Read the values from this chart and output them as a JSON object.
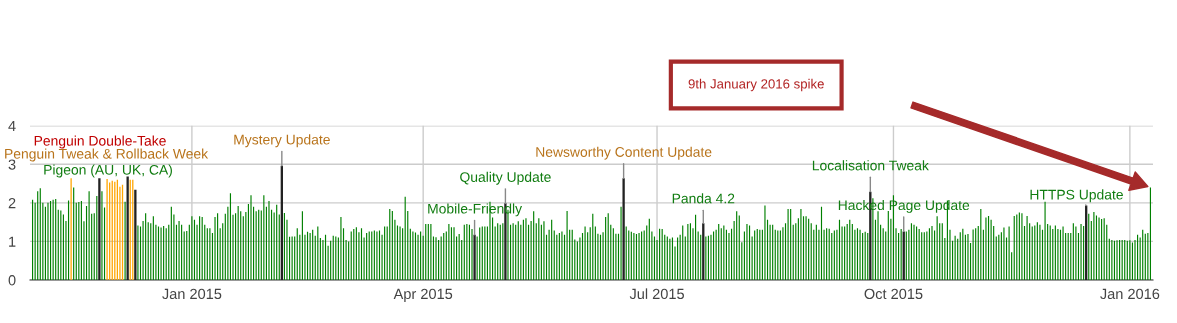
{
  "chart_data": {
    "type": "bar",
    "x": [
      "2014-10-31",
      "2014-11-01",
      "2014-11-02",
      "2014-11-03",
      "2014-11-04",
      "2014-11-05",
      "2014-11-06",
      "2014-11-07",
      "2014-11-08",
      "2014-11-09",
      "2014-11-10",
      "2014-11-11",
      "2014-11-12",
      "2014-11-13",
      "2014-11-14",
      "2014-11-15",
      "2014-11-16",
      "2014-11-17",
      "2014-11-18",
      "2014-11-19",
      "2014-11-20",
      "2014-11-21",
      "2014-11-22",
      "2014-11-23",
      "2014-11-24",
      "2014-11-25",
      "2014-11-26",
      "2014-11-27",
      "2014-11-28",
      "2014-11-29",
      "2014-11-30",
      "2014-12-01",
      "2014-12-02",
      "2014-12-03",
      "2014-12-04",
      "2014-12-05",
      "2014-12-06",
      "2014-12-07",
      "2014-12-08",
      "2014-12-09",
      "2014-12-10",
      "2014-12-11",
      "2014-12-12",
      "2014-12-13",
      "2014-12-14",
      "2014-12-15",
      "2014-12-16",
      "2014-12-17",
      "2014-12-18",
      "2014-12-19",
      "2014-12-20",
      "2014-12-21",
      "2014-12-22",
      "2014-12-23",
      "2014-12-24",
      "2014-12-25",
      "2014-12-26",
      "2014-12-27",
      "2014-12-28",
      "2014-12-29",
      "2014-12-30",
      "2014-12-31",
      "2015-01-01",
      "2015-01-02",
      "2015-01-03",
      "2015-01-04",
      "2015-01-05",
      "2015-01-06",
      "2015-01-07",
      "2015-01-08",
      "2015-01-09",
      "2015-01-10",
      "2015-01-11",
      "2015-01-12",
      "2015-01-13",
      "2015-01-14",
      "2015-01-15",
      "2015-01-16",
      "2015-01-17",
      "2015-01-18",
      "2015-01-19",
      "2015-01-20",
      "2015-01-21",
      "2015-01-22",
      "2015-01-23",
      "2015-01-24",
      "2015-01-25",
      "2015-01-26",
      "2015-01-27",
      "2015-01-28",
      "2015-01-29",
      "2015-01-30",
      "2015-01-31",
      "2015-02-01",
      "2015-02-02",
      "2015-02-03",
      "2015-02-04",
      "2015-02-05",
      "2015-02-06",
      "2015-02-07",
      "2015-02-08",
      "2015-02-09",
      "2015-02-10",
      "2015-02-11",
      "2015-02-12",
      "2015-02-13",
      "2015-02-14",
      "2015-02-15",
      "2015-02-16",
      "2015-02-17",
      "2015-02-18",
      "2015-02-19",
      "2015-02-20",
      "2015-02-21",
      "2015-02-22",
      "2015-02-23",
      "2015-02-24",
      "2015-02-25",
      "2015-02-26",
      "2015-02-27",
      "2015-02-28",
      "2015-03-01",
      "2015-03-02",
      "2015-03-03",
      "2015-03-04",
      "2015-03-05",
      "2015-03-06",
      "2015-03-07",
      "2015-03-08",
      "2015-03-09",
      "2015-03-10",
      "2015-03-11",
      "2015-03-12",
      "2015-03-13",
      "2015-03-14",
      "2015-03-15",
      "2015-03-16",
      "2015-03-17",
      "2015-03-18",
      "2015-03-19",
      "2015-03-20",
      "2015-03-21",
      "2015-03-22",
      "2015-03-23",
      "2015-03-24",
      "2015-03-25",
      "2015-03-26",
      "2015-03-27",
      "2015-03-28",
      "2015-03-29",
      "2015-03-30",
      "2015-03-31",
      "2015-04-01",
      "2015-04-02",
      "2015-04-03",
      "2015-04-04",
      "2015-04-05",
      "2015-04-06",
      "2015-04-07",
      "2015-04-08",
      "2015-04-09",
      "2015-04-10",
      "2015-04-11",
      "2015-04-12",
      "2015-04-13",
      "2015-04-14",
      "2015-04-15",
      "2015-04-16",
      "2015-04-17",
      "2015-04-18",
      "2015-04-19",
      "2015-04-20",
      "2015-04-21",
      "2015-04-22",
      "2015-04-23",
      "2015-04-24",
      "2015-04-25",
      "2015-04-26",
      "2015-04-27",
      "2015-04-28",
      "2015-04-29",
      "2015-04-30",
      "2015-05-01",
      "2015-05-02",
      "2015-05-03",
      "2015-05-04",
      "2015-05-05",
      "2015-05-06",
      "2015-05-07",
      "2015-05-08",
      "2015-05-09",
      "2015-05-10",
      "2015-05-11",
      "2015-05-12",
      "2015-05-13",
      "2015-05-14",
      "2015-05-15",
      "2015-05-16",
      "2015-05-17",
      "2015-05-18",
      "2015-05-19",
      "2015-05-20",
      "2015-05-21",
      "2015-05-22",
      "2015-05-23",
      "2015-05-24",
      "2015-05-25",
      "2015-05-26",
      "2015-05-27",
      "2015-05-28",
      "2015-05-29",
      "2015-05-30",
      "2015-05-31",
      "2015-06-01",
      "2015-06-02",
      "2015-06-03",
      "2015-06-04",
      "2015-06-05",
      "2015-06-06",
      "2015-06-07",
      "2015-06-08",
      "2015-06-09",
      "2015-06-10",
      "2015-06-11",
      "2015-06-12",
      "2015-06-13",
      "2015-06-14",
      "2015-06-15",
      "2015-06-16",
      "2015-06-17",
      "2015-06-18",
      "2015-06-19",
      "2015-06-20",
      "2015-06-21",
      "2015-06-22",
      "2015-06-23",
      "2015-06-24",
      "2015-06-25",
      "2015-06-26",
      "2015-06-27",
      "2015-06-28",
      "2015-06-29",
      "2015-06-30",
      "2015-07-01",
      "2015-07-02",
      "2015-07-03",
      "2015-07-04",
      "2015-07-05",
      "2015-07-06",
      "2015-07-07",
      "2015-07-08",
      "2015-07-09",
      "2015-07-10",
      "2015-07-11",
      "2015-07-12",
      "2015-07-13",
      "2015-07-14",
      "2015-07-15",
      "2015-07-16",
      "2015-07-17",
      "2015-07-18",
      "2015-07-19",
      "2015-07-20",
      "2015-07-21",
      "2015-07-22",
      "2015-07-23",
      "2015-07-24",
      "2015-07-25",
      "2015-07-26",
      "2015-07-27",
      "2015-07-28",
      "2015-07-29",
      "2015-07-30",
      "2015-07-31",
      "2015-08-01",
      "2015-08-02",
      "2015-08-03",
      "2015-08-04",
      "2015-08-05",
      "2015-08-06",
      "2015-08-07",
      "2015-08-08",
      "2015-08-09",
      "2015-08-10",
      "2015-08-11",
      "2015-08-12",
      "2015-08-13",
      "2015-08-14",
      "2015-08-15",
      "2015-08-16",
      "2015-08-17",
      "2015-08-18",
      "2015-08-19",
      "2015-08-20",
      "2015-08-21",
      "2015-08-22",
      "2015-08-23",
      "2015-08-24",
      "2015-08-25",
      "2015-08-26",
      "2015-08-27",
      "2015-08-28",
      "2015-08-29",
      "2015-08-30",
      "2015-08-31",
      "2015-09-01",
      "2015-09-02",
      "2015-09-03",
      "2015-09-04",
      "2015-09-05",
      "2015-09-06",
      "2015-09-07",
      "2015-09-08",
      "2015-09-09",
      "2015-09-10",
      "2015-09-11",
      "2015-09-12",
      "2015-09-13",
      "2015-09-14",
      "2015-09-15",
      "2015-09-16",
      "2015-09-17",
      "2015-09-18",
      "2015-09-19",
      "2015-09-20",
      "2015-09-21",
      "2015-09-22",
      "2015-09-23",
      "2015-09-24",
      "2015-09-25",
      "2015-09-26",
      "2015-09-27",
      "2015-09-28",
      "2015-09-29",
      "2015-09-30",
      "2015-10-01",
      "2015-10-02",
      "2015-10-03",
      "2015-10-04",
      "2015-10-05",
      "2015-10-06",
      "2015-10-07",
      "2015-10-08",
      "2015-10-09",
      "2015-10-10",
      "2015-10-11",
      "2015-10-12",
      "2015-10-13",
      "2015-10-14",
      "2015-10-15",
      "2015-10-16",
      "2015-10-17",
      "2015-10-18",
      "2015-10-19",
      "2015-10-20",
      "2015-10-21",
      "2015-10-22",
      "2015-10-23",
      "2015-10-24",
      "2015-10-25",
      "2015-10-26",
      "2015-10-27",
      "2015-10-28",
      "2015-10-29",
      "2015-10-30",
      "2015-10-31",
      "2015-11-01",
      "2015-11-02",
      "2015-11-03",
      "2015-11-04",
      "2015-11-05",
      "2015-11-06",
      "2015-11-07",
      "2015-11-08",
      "2015-11-09",
      "2015-11-10",
      "2015-11-11",
      "2015-11-12",
      "2015-11-13",
      "2015-11-14",
      "2015-11-15",
      "2015-11-16",
      "2015-11-17",
      "2015-11-18",
      "2015-11-19",
      "2015-11-20",
      "2015-11-21",
      "2015-11-22",
      "2015-11-23",
      "2015-11-24",
      "2015-11-25",
      "2015-11-26",
      "2015-11-27",
      "2015-11-28",
      "2015-11-29",
      "2015-11-30",
      "2015-12-01",
      "2015-12-02",
      "2015-12-03",
      "2015-12-04",
      "2015-12-05",
      "2015-12-06",
      "2015-12-07",
      "2015-12-08",
      "2015-12-09",
      "2015-12-10",
      "2015-12-11",
      "2015-12-12",
      "2015-12-13",
      "2015-12-14",
      "2015-12-15",
      "2015-12-16",
      "2015-12-17",
      "2015-12-18",
      "2015-12-19",
      "2015-12-20",
      "2015-12-21",
      "2015-12-22",
      "2015-12-23",
      "2015-12-24",
      "2015-12-25",
      "2015-12-26",
      "2015-12-27",
      "2015-12-28",
      "2015-12-29",
      "2015-12-30",
      "2015-12-31",
      "2016-01-01",
      "2016-01-02",
      "2016-01-03",
      "2016-01-04",
      "2016-01-05",
      "2016-01-06",
      "2016-01-07",
      "2016-01-08",
      "2016-01-09"
    ],
    "series": [
      {
        "color": "#008000",
        "values": [
          2.08,
          2.0,
          2.3,
          2.38,
          2.0,
          1.9,
          2.0,
          2.05,
          2.08,
          2.1,
          1.82,
          1.8,
          1.7,
          1.53,
          2.06,
          null,
          2.4,
          2.0,
          2.02,
          2.05,
          1.52,
          1.92,
          2.3,
          1.72,
          1.73,
          2.18,
          null,
          2.3,
          1.88,
          null,
          null,
          null,
          null,
          null,
          null,
          null,
          2.03,
          null,
          null,
          null,
          null,
          1.41,
          1.39,
          1.53,
          1.73,
          1.5,
          1.47,
          1.65,
          1.43,
          1.39,
          1.36,
          1.4,
          1.34,
          1.43,
          1.9,
          1.7,
          1.43,
          1.53,
          1.43,
          1.26,
          1.27,
          1.43,
          1.65,
          1.56,
          1.43,
          1.65,
          1.63,
          1.43,
          1.34,
          1.34,
          1.22,
          1.63,
          1.73,
          1.34,
          1.47,
          1.72,
          1.9,
          2.25,
          1.69,
          1.73,
          1.92,
          1.78,
          1.65,
          1.76,
          1.97,
          2.2,
          1.9,
          1.78,
          1.82,
          1.8,
          2.2,
          1.9,
          2.05,
          1.82,
          1.75,
          1.95,
          1.7,
          null,
          1.74,
          1.56,
          1.12,
          1.13,
          1.13,
          1.34,
          1.17,
          1.78,
          1.17,
          1.25,
          1.22,
          1.3,
          1.15,
          1.39,
          1.09,
          1.04,
          1.17,
          0.89,
          1.02,
          1.15,
          1.13,
          1.1,
          1.63,
          1.34,
          1.04,
          1.0,
          1.26,
          1.32,
          1.37,
          1.24,
          1.34,
          1.1,
          1.22,
          1.26,
          1.26,
          1.28,
          1.26,
          1.28,
          1.17,
          1.39,
          1.39,
          1.84,
          1.79,
          1.56,
          1.41,
          1.39,
          1.34,
          2.16,
          1.79,
          1.33,
          1.26,
          1.23,
          1.17,
          1.26,
          1.15,
          1.45,
          1.45,
          1.45,
          1.13,
          1.11,
          1.04,
          1.13,
          1.22,
          1.26,
          1.45,
          1.37,
          1.37,
          1.13,
          1.19,
          1.04,
          1.43,
          1.45,
          1.43,
          1.32,
          null,
          1.13,
          1.36,
          1.39,
          1.39,
          1.39,
          2.03,
          1.62,
          1.39,
          1.47,
          1.43,
          1.47,
          null,
          1.82,
          1.43,
          1.47,
          1.43,
          1.52,
          1.43,
          1.56,
          1.6,
          1.43,
          1.53,
          1.78,
          1.47,
          1.6,
          1.43,
          1.52,
          1.17,
          1.3,
          1.56,
          1.28,
          1.17,
          1.22,
          1.26,
          1.17,
          1.79,
          1.3,
          1.3,
          1.05,
          1.0,
          1.1,
          1.22,
          1.39,
          1.24,
          1.37,
          1.72,
          1.39,
          1.2,
          1.17,
          1.24,
          1.63,
          1.73,
          1.43,
          1.34,
          1.2,
          1.2,
          1.9,
          null,
          1.39,
          1.28,
          1.25,
          1.22,
          1.19,
          1.22,
          1.26,
          1.28,
          1.41,
          1.59,
          1.26,
          1.13,
          1.04,
          1.33,
          1.32,
          1.17,
          1.13,
          1.07,
          1.1,
          0.87,
          1.1,
          1.17,
          1.41,
          1.13,
          1.45,
          1.47,
          1.34,
          1.69,
          1.26,
          1.17,
          null,
          1.13,
          1.15,
          1.17,
          1.26,
          1.3,
          1.45,
          1.34,
          1.41,
          1.3,
          1.22,
          1.33,
          1.53,
          1.78,
          1.67,
          0.98,
          1.26,
          1.45,
          1.41,
          1.13,
          1.28,
          1.32,
          1.3,
          1.3,
          1.93,
          1.56,
          1.43,
          1.43,
          1.3,
          1.28,
          1.28,
          1.37,
          1.47,
          1.84,
          1.84,
          1.43,
          1.47,
          1.6,
          1.84,
          1.65,
          1.65,
          1.59,
          1.47,
          1.3,
          1.43,
          1.3,
          1.9,
          1.3,
          1.34,
          1.33,
          1.22,
          1.28,
          1.3,
          1.56,
          1.39,
          1.39,
          1.45,
          1.56,
          1.45,
          1.3,
          1.34,
          1.3,
          1.22,
          1.25,
          1.22,
          null,
          2.12,
          1.56,
          1.78,
          1.43,
          1.34,
          1.26,
          1.79,
          1.59,
          2.2,
          1.34,
          1.22,
          1.32,
          null,
          1.26,
          1.3,
          1.47,
          1.43,
          1.39,
          1.32,
          1.24,
          1.24,
          1.26,
          1.34,
          1.4,
          1.28,
          1.65,
          1.47,
          1.47,
          1.09,
          2.06,
          1.3,
          1.02,
          1.15,
          1.07,
          1.24,
          1.33,
          1.17,
          1.19,
          0.96,
          1.31,
          1.34,
          1.4,
          1.84,
          1.3,
          1.62,
          1.66,
          1.56,
          1.4,
          1.13,
          1.17,
          1.24,
          1.36,
          1.1,
          1.39,
          0.72,
          1.66,
          1.7,
          1.75,
          1.73,
          1.4,
          1.66,
          1.47,
          1.39,
          1.41,
          1.5,
          1.43,
          1.3,
          2.03,
          1.45,
          1.41,
          1.32,
          1.41,
          1.32,
          1.3,
          1.39,
          1.22,
          1.22,
          1.22,
          1.47,
          1.39,
          1.22,
          1.45,
          1.4,
          null,
          1.72,
          1.53,
          1.76,
          1.67,
          1.62,
          1.58,
          1.6,
          1.43,
          1.07,
          1.04,
          1.02,
          1.03,
          1.04,
          1.04,
          1.04,
          1.02,
          1.03,
          0.97,
          1.04,
          1.17,
          1.1,
          1.3,
          1.2,
          1.22,
          2.4
        ]
      },
      {
        "color": "#ffa500",
        "x": [
          "2014-11-15",
          "2014-11-29",
          "2014-11-30",
          "2014-12-01",
          "2014-12-02",
          "2014-12-03",
          "2014-12-04",
          "2014-12-05",
          "2014-12-08",
          "2014-12-09"
        ],
        "values": [
          2.64,
          2.62,
          2.53,
          2.57,
          2.55,
          2.6,
          2.42,
          2.47,
          2.6,
          2.6
        ]
      },
      {
        "color": "#222222",
        "x": [
          "2014-11-26",
          "2014-12-07",
          "2014-12-10",
          "2015-02-05",
          "2015-04-21",
          "2015-05-03",
          "2015-06-18",
          "2015-07-19",
          "2015-09-22",
          "2015-10-05",
          "2015-12-15"
        ],
        "values": [
          2.64,
          2.68,
          2.34,
          2.96,
          1.17,
          1.99,
          2.64,
          1.47,
          2.29,
          1.26,
          1.93
        ]
      }
    ],
    "xlim": [
      "2014-10-30",
      "2016-01-10"
    ],
    "xticks": [
      {
        "value": "2015-01-01",
        "label": "Jan 2015"
      },
      {
        "value": "2015-04-01",
        "label": "Apr 2015"
      },
      {
        "value": "2015-07-01",
        "label": "Jul 2015"
      },
      {
        "value": "2015-10-01",
        "label": "Oct 2015"
      },
      {
        "value": "2016-01-01",
        "label": "Jan 2016"
      }
    ],
    "ylim": [
      0,
      4
    ],
    "yticks": [
      0,
      1,
      2,
      3,
      4
    ],
    "grid": true,
    "annotations": [
      "Penguin Double-Take",
      "Penguin Tweak & Rollback Week",
      "Pigeon (AU, UK, CA)",
      {
        "text": "Mystery Update",
        "x": "2015-02-05",
        "y": 2.96
      },
      {
        "text": "Mobile-Friendly",
        "x": "2015-04-21",
        "y": 1.17
      },
      {
        "text": "Quality Update",
        "x": "2015-05-03",
        "y": 1.99
      },
      {
        "text": "Newsworthy Content Update",
        "x": "2015-06-18",
        "y": 2.64
      },
      {
        "text": "Panda 4.2",
        "x": "2015-07-19",
        "y": 1.47
      },
      {
        "text": "Localisation Tweak",
        "x": "2015-09-22",
        "y": 2.29
      },
      {
        "text": "Hacked Page Update",
        "x": "2015-10-05",
        "y": 1.26
      },
      {
        "text": "HTTPS Update",
        "x": "2015-12-15",
        "y": 1.93
      },
      "9th January 2016 spike"
    ]
  }
}
